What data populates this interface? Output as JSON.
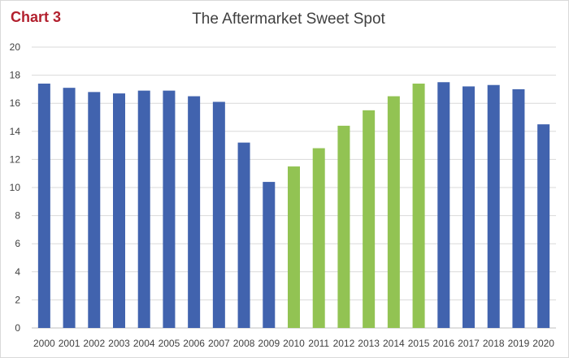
{
  "chart_label": "Chart 3",
  "chart_data": {
    "type": "bar",
    "title": "The Aftermarket Sweet Spot",
    "xlabel": "",
    "ylabel": "",
    "ylim": [
      0,
      20
    ],
    "yticks": [
      0,
      2,
      4,
      6,
      8,
      10,
      12,
      14,
      16,
      18,
      20
    ],
    "grid": true,
    "categories": [
      "2000",
      "2001",
      "2002",
      "2003",
      "2004",
      "2005",
      "2006",
      "2007",
      "2008",
      "2009",
      "2010",
      "2011",
      "2012",
      "2013",
      "2014",
      "2015",
      "2016",
      "2017",
      "2018",
      "2019",
      "2020"
    ],
    "values": [
      17.4,
      17.1,
      16.8,
      16.7,
      16.9,
      16.9,
      16.5,
      16.1,
      13.2,
      10.4,
      11.5,
      12.8,
      14.4,
      15.5,
      16.5,
      17.4,
      17.5,
      17.2,
      17.3,
      17.0,
      14.5
    ],
    "highlight_categories": [
      "2010",
      "2011",
      "2012",
      "2013",
      "2014",
      "2015"
    ],
    "colors": {
      "default": "#4163ae",
      "highlight": "#92c353",
      "grid": "#d9d9d9",
      "axis": "#bfbfbf"
    }
  }
}
